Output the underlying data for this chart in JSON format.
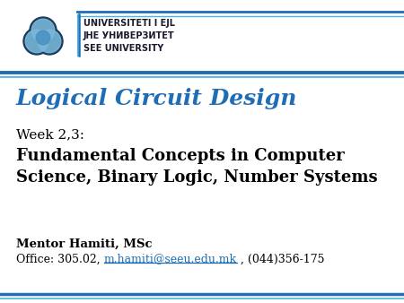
{
  "bg_color": "#ffffff",
  "header_line_colors": [
    "#1f6eb5",
    "#4db3e6"
  ],
  "footer_line_colors": [
    "#1f6eb5",
    "#4db3e6"
  ],
  "title_text": "Logical Circuit Design",
  "title_color": "#1f6eb5",
  "week_text": "Week 2,3:",
  "week_color": "#000000",
  "subject_text": "Fundamental Concepts in Computer\nScience, Binary Logic, Number Systems",
  "subject_color": "#000000",
  "mentor_text": "Mentor Hamiti, MSc",
  "mentor_color": "#000000",
  "office_prefix": "Office: 305.02, ",
  "office_email": "m.hamiti@seeu.edu.mk",
  "office_suffix": " , (044)356-175",
  "office_color": "#000000",
  "link_color": "#1f6eb5",
  "uni_line1": "UNIVERSITETI I EJL",
  "uni_line2": "ЈНЕ УНИВЕРЗИТЕТ",
  "uni_line3": "SEE UNIVERSITY",
  "uni_text_color": "#1a1a2e",
  "logo_dark": "#1a3a5c",
  "logo_light": "#7ab8d9",
  "logo_mid": "#4a90c4"
}
